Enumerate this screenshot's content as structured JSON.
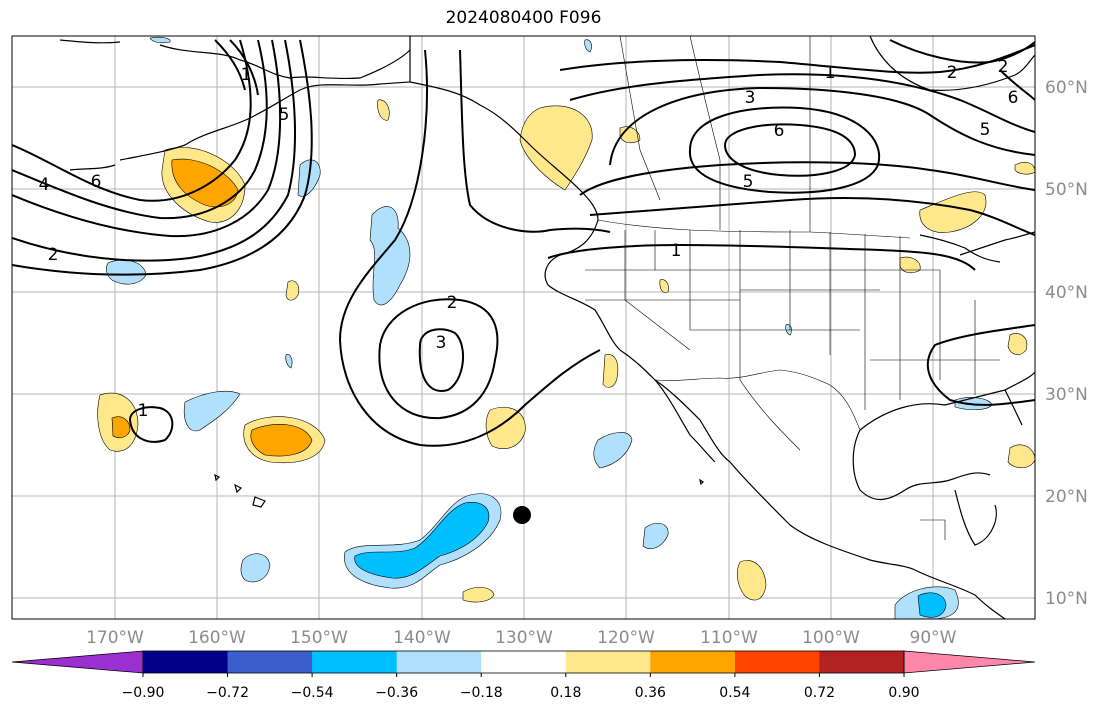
{
  "title": "2024080400 F096",
  "map": {
    "lon_labels": [
      "170°W",
      "160°W",
      "150°W",
      "140°W",
      "130°W",
      "120°W",
      "110°W",
      "100°W",
      "90°W"
    ],
    "lat_labels": [
      "60°N",
      "50°N",
      "40°N",
      "30°N",
      "20°N",
      "10°N"
    ],
    "contour_labels": [
      "1",
      "2",
      "3",
      "5",
      "6",
      "1",
      "2",
      "3",
      "1",
      "2",
      "4",
      "6",
      "5",
      "5",
      "6",
      "2",
      "1"
    ],
    "marker": "storm-center"
  },
  "colorbar": {
    "colors": [
      "#9b30d0",
      "#00008b",
      "#3a5fcd",
      "#00bfff",
      "#b0e0fb",
      "#ffffff",
      "#ffe88c",
      "#ffa500",
      "#ff4500",
      "#b22222",
      "#ff88aa"
    ],
    "tick_labels": [
      "−0.90",
      "−0.72",
      "−0.54",
      "−0.36",
      "−0.18",
      "0.18",
      "0.36",
      "0.54",
      "0.72",
      "0.90"
    ]
  }
}
